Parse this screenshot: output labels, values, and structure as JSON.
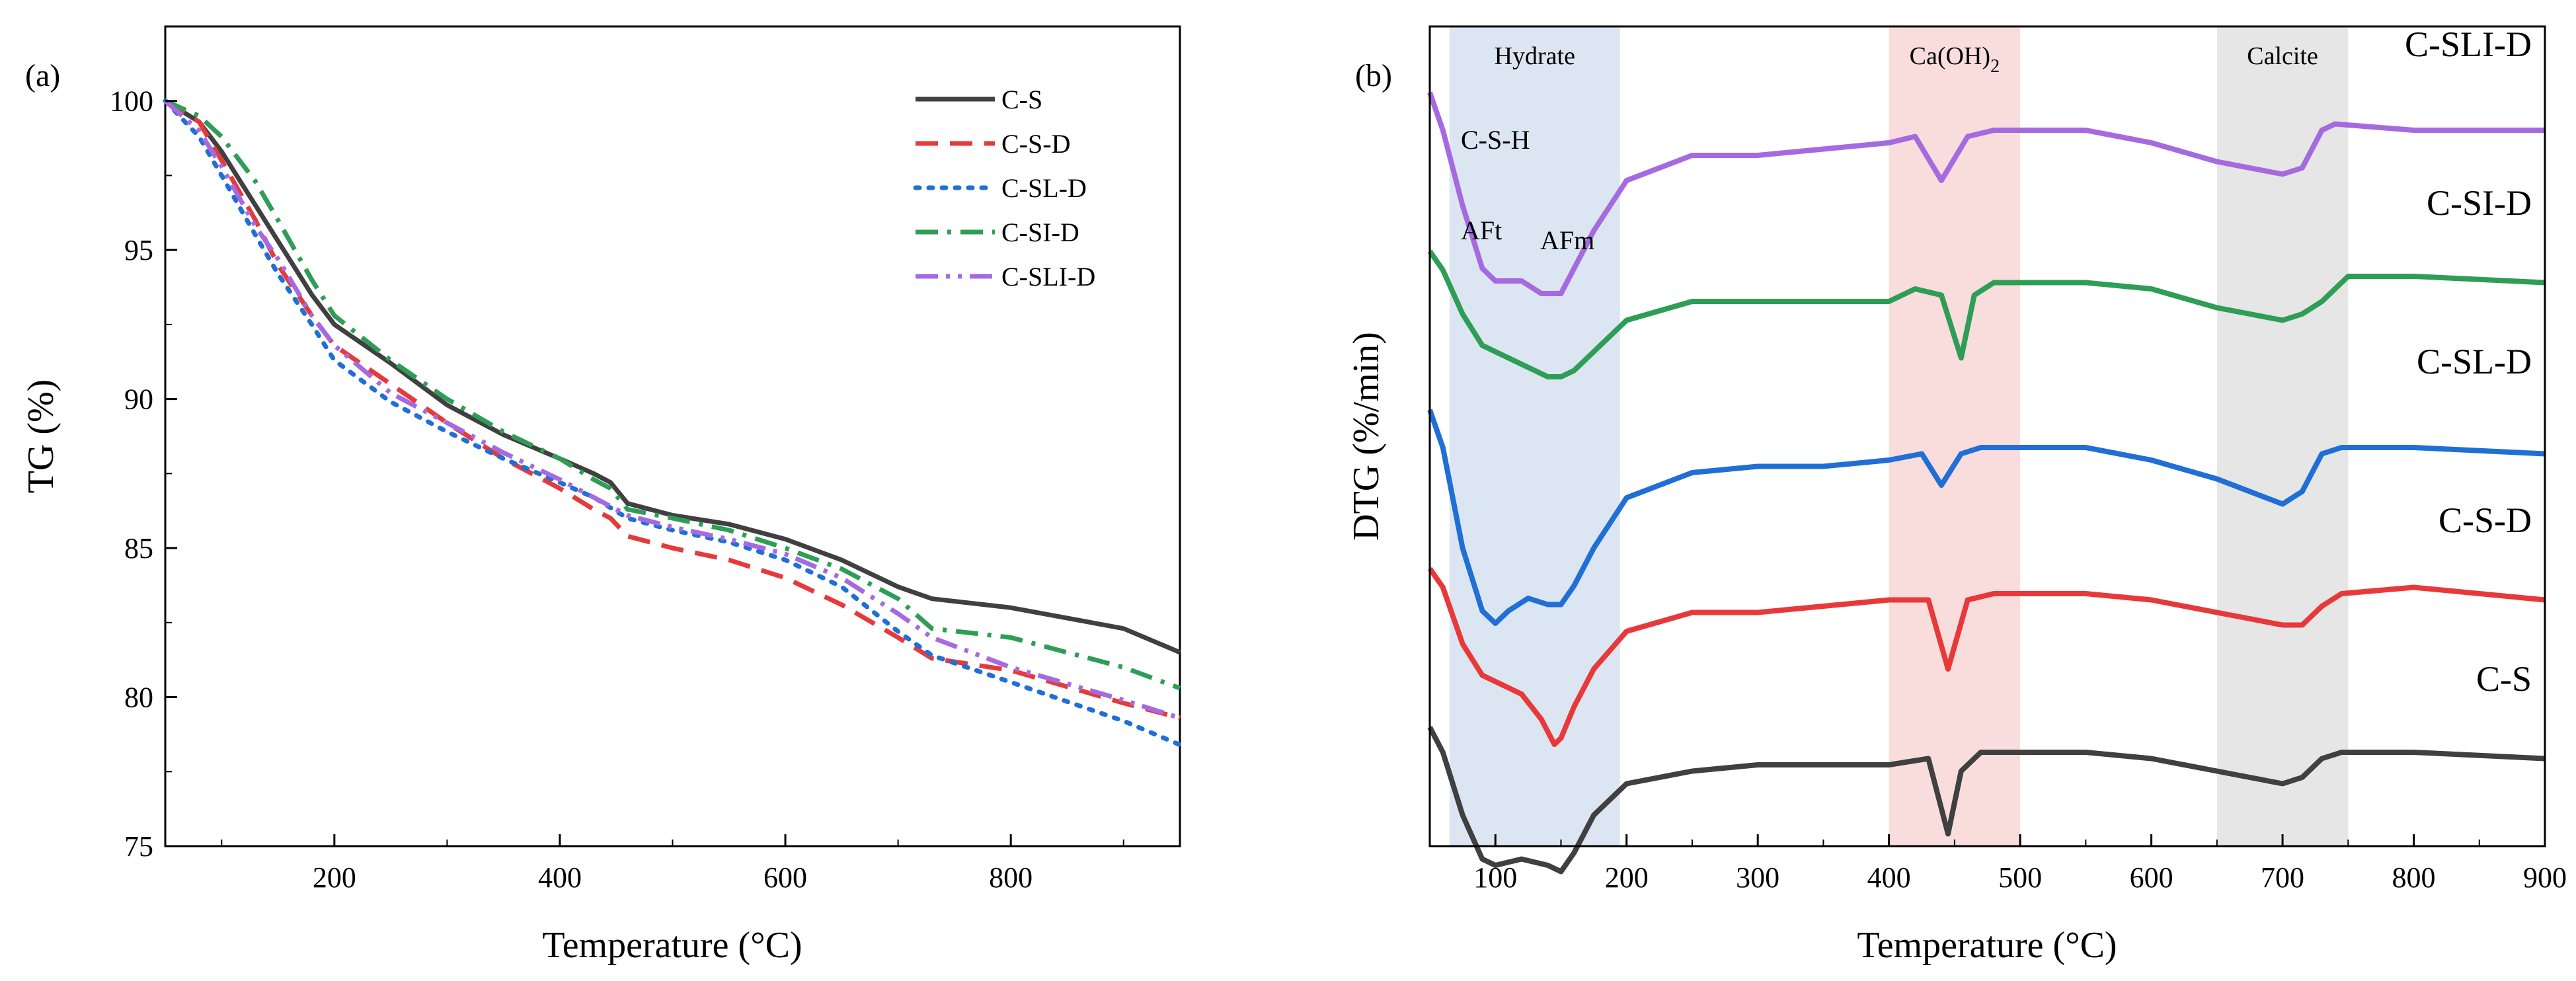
{
  "chart_data": [
    {
      "panel": "(a)",
      "type": "line",
      "xlabel": "Temperature (°C)",
      "ylabel": "TG (%)",
      "xlim": [
        50,
        950
      ],
      "ylim": [
        75,
        102.5
      ],
      "xticks": [
        200,
        400,
        600,
        800
      ],
      "xtick_labels": [
        "200",
        "400",
        "600",
        "800"
      ],
      "yticks": [
        75,
        80,
        85,
        90,
        95,
        100
      ],
      "ytick_labels": [
        "75",
        "80",
        "85",
        "90",
        "95",
        "100"
      ],
      "legend_position": "top-right",
      "series": [
        {
          "name": "C-S",
          "color": "#404040",
          "dash": "solid",
          "x": [
            50,
            80,
            100,
            130,
            150,
            180,
            200,
            250,
            300,
            350,
            400,
            430,
            445,
            460,
            500,
            550,
            600,
            650,
            700,
            730,
            800,
            900,
            950
          ],
          "y": [
            100,
            99.3,
            98.3,
            96.5,
            95.3,
            93.5,
            92.5,
            91.2,
            89.8,
            88.8,
            88.0,
            87.5,
            87.2,
            86.5,
            86.1,
            85.8,
            85.3,
            84.6,
            83.7,
            83.3,
            83.0,
            82.3,
            81.5
          ]
        },
        {
          "name": "C-S-D",
          "color": "#e8393a",
          "dash": "dashed",
          "x": [
            50,
            80,
            100,
            130,
            150,
            180,
            200,
            250,
            300,
            350,
            400,
            430,
            445,
            460,
            500,
            550,
            600,
            650,
            700,
            730,
            800,
            900,
            950
          ],
          "y": [
            100,
            99.3,
            98.0,
            96.0,
            94.5,
            92.8,
            91.8,
            90.5,
            89.2,
            88.0,
            87.0,
            86.3,
            86.0,
            85.4,
            85.0,
            84.6,
            84.0,
            83.1,
            82.0,
            81.3,
            80.9,
            79.8,
            79.3
          ]
        },
        {
          "name": "C-SL-D",
          "color": "#1f6fd6",
          "dash": "dotted",
          "x": [
            50,
            80,
            100,
            130,
            150,
            180,
            200,
            250,
            300,
            350,
            400,
            430,
            460,
            500,
            550,
            600,
            650,
            700,
            730,
            800,
            900,
            950
          ],
          "y": [
            100,
            98.8,
            97.5,
            95.5,
            94.2,
            92.5,
            91.3,
            89.9,
            88.9,
            88.0,
            87.2,
            86.7,
            86.0,
            85.6,
            85.2,
            84.6,
            83.7,
            82.2,
            81.4,
            80.5,
            79.2,
            78.4
          ]
        },
        {
          "name": "C-SI-D",
          "color": "#2e9e56",
          "dash": "dashdot",
          "x": [
            50,
            80,
            100,
            130,
            150,
            180,
            200,
            250,
            300,
            350,
            400,
            430,
            445,
            460,
            500,
            550,
            600,
            650,
            700,
            730,
            800,
            900,
            950
          ],
          "y": [
            100,
            99.5,
            98.8,
            97.3,
            96.0,
            94.0,
            92.8,
            91.3,
            90.0,
            88.9,
            88.0,
            87.3,
            87.0,
            86.3,
            86.0,
            85.6,
            85.0,
            84.3,
            83.3,
            82.3,
            82.0,
            81.0,
            80.3
          ]
        },
        {
          "name": "C-SLI-D",
          "color": "#a66ae0",
          "dash": "dashdotdot",
          "x": [
            50,
            80,
            100,
            130,
            150,
            180,
            200,
            250,
            300,
            350,
            400,
            430,
            460,
            500,
            550,
            600,
            650,
            700,
            730,
            800,
            900,
            950
          ],
          "y": [
            100,
            99.0,
            97.8,
            95.8,
            94.7,
            92.8,
            91.8,
            90.2,
            89.2,
            88.2,
            87.3,
            86.7,
            86.1,
            85.7,
            85.3,
            84.8,
            84.0,
            82.8,
            82.0,
            81.0,
            79.9,
            79.3
          ]
        }
      ]
    },
    {
      "panel": "(b)",
      "type": "line",
      "xlabel": "Temperature (°C)",
      "ylabel": "DTG (%/min)",
      "xlim": [
        50,
        900
      ],
      "xticks": [
        100,
        200,
        300,
        400,
        500,
        600,
        700,
        800,
        900
      ],
      "xtick_labels": [
        "100",
        "200",
        "300",
        "400",
        "500",
        "600",
        "700",
        "800",
        "900"
      ],
      "y_units": "arbitrary (stacked, no tick labels)",
      "bands": [
        {
          "label": "Hydrate",
          "from": 65,
          "to": 195,
          "color": "#dce6f2"
        },
        {
          "label": "Ca(OH)",
          "subscript": "2",
          "from": 400,
          "to": 500,
          "color": "#f9dcdc"
        },
        {
          "label": "Calcite",
          "from": 650,
          "to": 750,
          "color": "#e6e6e6"
        }
      ],
      "peak_labels": {
        "csh": "C-S-H",
        "aft": "AFt",
        "afm": "AFm"
      },
      "series": [
        {
          "name": "C-SLI-D",
          "color": "#a66ae0",
          "label": "C-SLI-D",
          "offset": 4.0,
          "x": [
            50,
            60,
            75,
            90,
            100,
            110,
            120,
            135,
            150,
            160,
            175,
            200,
            250,
            300,
            350,
            400,
            420,
            440,
            460,
            480,
            500,
            550,
            600,
            650,
            700,
            715,
            730,
            740,
            800,
            900
          ],
          "y": [
            0,
            -0.3,
            -0.9,
            -1.4,
            -1.5,
            -1.5,
            -1.5,
            -1.6,
            -1.6,
            -1.4,
            -1.1,
            -0.7,
            -0.5,
            -0.5,
            -0.45,
            -0.4,
            -0.35,
            -0.7,
            -0.35,
            -0.3,
            -0.3,
            -0.3,
            -0.4,
            -0.55,
            -0.65,
            -0.6,
            -0.3,
            -0.25,
            -0.3,
            -0.3
          ]
        },
        {
          "name": "C-SI-D",
          "color": "#2e9e56",
          "label": "C-SI-D",
          "offset": 3.0,
          "x": [
            50,
            60,
            75,
            90,
            100,
            120,
            140,
            150,
            160,
            175,
            200,
            250,
            300,
            350,
            400,
            420,
            440,
            455,
            465,
            480,
            500,
            550,
            600,
            650,
            700,
            715,
            730,
            750,
            800,
            900
          ],
          "y": [
            0,
            -0.15,
            -0.5,
            -0.75,
            -0.8,
            -0.9,
            -1.0,
            -1.0,
            -0.95,
            -0.8,
            -0.55,
            -0.4,
            -0.4,
            -0.4,
            -0.4,
            -0.3,
            -0.35,
            -0.85,
            -0.35,
            -0.25,
            -0.25,
            -0.25,
            -0.3,
            -0.45,
            -0.55,
            -0.5,
            -0.4,
            -0.2,
            -0.2,
            -0.25
          ]
        },
        {
          "name": "C-SL-D",
          "color": "#1f6fd6",
          "label": "C-SL-D",
          "offset": 2.0,
          "x": [
            50,
            60,
            75,
            90,
            100,
            110,
            125,
            140,
            150,
            160,
            175,
            200,
            250,
            300,
            350,
            400,
            425,
            440,
            455,
            470,
            500,
            550,
            600,
            650,
            700,
            715,
            730,
            745,
            800,
            900
          ],
          "y": [
            0,
            -0.3,
            -1.1,
            -1.6,
            -1.7,
            -1.6,
            -1.5,
            -1.55,
            -1.55,
            -1.4,
            -1.1,
            -0.7,
            -0.5,
            -0.45,
            -0.45,
            -0.4,
            -0.35,
            -0.6,
            -0.35,
            -0.3,
            -0.3,
            -0.3,
            -0.4,
            -0.55,
            -0.75,
            -0.65,
            -0.35,
            -0.3,
            -0.3,
            -0.35
          ]
        },
        {
          "name": "C-S-D",
          "color": "#e8393a",
          "label": "C-S-D",
          "offset": 1.0,
          "x": [
            50,
            60,
            75,
            90,
            100,
            120,
            135,
            145,
            150,
            160,
            175,
            200,
            250,
            300,
            350,
            400,
            430,
            445,
            460,
            480,
            500,
            550,
            600,
            650,
            700,
            715,
            730,
            745,
            800,
            900
          ],
          "y": [
            0,
            -0.15,
            -0.6,
            -0.85,
            -0.9,
            -1.0,
            -1.2,
            -1.4,
            -1.35,
            -1.1,
            -0.8,
            -0.5,
            -0.35,
            -0.35,
            -0.3,
            -0.25,
            -0.25,
            -0.8,
            -0.25,
            -0.2,
            -0.2,
            -0.2,
            -0.25,
            -0.35,
            -0.45,
            -0.45,
            -0.3,
            -0.2,
            -0.15,
            -0.25
          ]
        },
        {
          "name": "C-S",
          "color": "#404040",
          "label": "C-S",
          "offset": 0.0,
          "x": [
            50,
            60,
            75,
            90,
            100,
            120,
            140,
            150,
            160,
            175,
            200,
            250,
            300,
            350,
            400,
            430,
            445,
            455,
            470,
            500,
            550,
            600,
            650,
            700,
            715,
            730,
            745,
            800,
            900
          ],
          "y": [
            0,
            -0.2,
            -0.7,
            -1.05,
            -1.1,
            -1.05,
            -1.1,
            -1.15,
            -1.0,
            -0.7,
            -0.45,
            -0.35,
            -0.3,
            -0.3,
            -0.3,
            -0.25,
            -0.85,
            -0.35,
            -0.2,
            -0.2,
            -0.2,
            -0.25,
            -0.35,
            -0.45,
            -0.4,
            -0.25,
            -0.2,
            -0.2,
            -0.25
          ]
        }
      ]
    }
  ]
}
